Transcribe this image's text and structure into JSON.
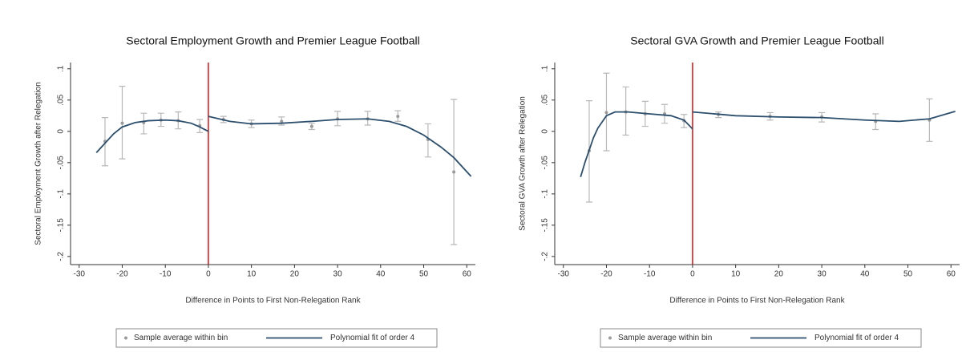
{
  "chart_data": [
    {
      "type": "scatter",
      "title": "Sectoral Employment Growth and Premier League Football",
      "xlabel": "Difference in Points to First Non-Relegation Rank",
      "ylabel": "Sectoral Employment Growth after Relegation",
      "xlim": [
        -32,
        62
      ],
      "ylim": [
        -0.213,
        0.11
      ],
      "xticks": [
        -30,
        -20,
        -10,
        0,
        10,
        20,
        30,
        40,
        50,
        60
      ],
      "yticks": [
        {
          "value": 0.1,
          "label": ".1"
        },
        {
          "value": 0.05,
          "label": ".05"
        },
        0,
        {
          "value": -0.05,
          "label": "-.05"
        },
        {
          "value": -0.1,
          "label": "-.1"
        },
        {
          "value": -0.15,
          "label": "-.15"
        },
        {
          "value": -0.2,
          "label": "-.2"
        }
      ],
      "vline": 0,
      "vline_color": "#e01010",
      "series": [
        {
          "name": "Sample average within bin",
          "color": "#9a9a9a",
          "x": [
            -24,
            -20,
            -15,
            -11,
            -7,
            -2,
            3.5,
            10,
            17,
            24,
            30,
            37,
            44,
            51,
            57
          ],
          "values": [
            -0.016,
            0.013,
            0.014,
            0.018,
            0.017,
            0.009,
            0.019,
            0.012,
            0.016,
            0.008,
            0.02,
            0.02,
            0.024,
            -0.013,
            -0.065
          ],
          "ci_high": [
            0.022,
            0.072,
            0.029,
            0.029,
            0.031,
            0.019,
            0.024,
            0.018,
            0.023,
            0.013,
            0.032,
            0.032,
            0.033,
            0.012,
            0.051
          ],
          "ci_low": [
            -0.055,
            -0.044,
            -0.004,
            0.008,
            0.004,
            -0.002,
            0.014,
            0.006,
            0.01,
            0.003,
            0.009,
            0.01,
            0.016,
            -0.041,
            -0.181
          ]
        },
        {
          "name": "Polynomial fit of order 4",
          "color": "#2c4f6e",
          "x": [
            -26,
            -24,
            -22,
            -20,
            -17,
            -14,
            -10,
            -7,
            -4,
            -2,
            0,
            0,
            0,
            5,
            10,
            17,
            24,
            30,
            37,
            42,
            46,
            50,
            54,
            57,
            61
          ],
          "values": [
            -0.034,
            -0.019,
            -0.004,
            0.007,
            0.014,
            0.017,
            0.018,
            0.017,
            0.013,
            0.007,
            0.0,
            null,
            0.024,
            0.016,
            0.012,
            0.013,
            0.016,
            0.019,
            0.02,
            0.016,
            0.008,
            -0.006,
            -0.025,
            -0.042,
            -0.072
          ]
        }
      ]
    },
    {
      "type": "scatter",
      "title": "Sectoral GVA Growth and Premier League Football",
      "xlabel": "Difference in Points to First Non-Relegation Rank",
      "ylabel": "Sectoral GVA Growth after Relegation",
      "xlim": [
        -32,
        62
      ],
      "ylim": [
        -0.213,
        0.11
      ],
      "xticks": [
        -30,
        -20,
        -10,
        0,
        10,
        20,
        30,
        40,
        50,
        60
      ],
      "yticks": [
        {
          "value": 0.1,
          "label": ".1"
        },
        {
          "value": 0.05,
          "label": ".05"
        },
        0,
        {
          "value": -0.05,
          "label": "-.05"
        },
        {
          "value": -0.1,
          "label": "-.1"
        },
        {
          "value": -0.15,
          "label": "-.15"
        },
        {
          "value": -0.2,
          "label": "-.2"
        }
      ],
      "vline": 0,
      "vline_color": "#e01010",
      "series": [
        {
          "name": "Sample average within bin",
          "color": "#9a9a9a",
          "x": [
            -24,
            -20,
            -15.5,
            -11,
            -6.5,
            -2,
            6,
            18,
            30,
            42.5,
            55
          ],
          "values": [
            -0.031,
            0.03,
            0.031,
            0.028,
            0.028,
            0.017,
            0.027,
            0.024,
            0.023,
            0.016,
            0.018
          ],
          "ci_high": [
            0.049,
            0.093,
            0.071,
            0.048,
            0.043,
            0.027,
            0.031,
            0.03,
            0.03,
            0.028,
            0.052
          ],
          "ci_low": [
            -0.113,
            -0.031,
            -0.006,
            0.008,
            0.013,
            0.006,
            0.022,
            0.018,
            0.015,
            0.003,
            -0.016
          ]
        },
        {
          "name": "Polynomial fit of order 4",
          "color": "#2c4f6e",
          "x": [
            -26,
            -25,
            -24,
            -23,
            -22,
            -20,
            -18,
            -15,
            -10,
            -5,
            -2,
            0,
            0,
            0,
            10,
            20,
            30,
            40,
            48,
            55,
            61
          ],
          "values": [
            -0.073,
            -0.05,
            -0.03,
            -0.01,
            0.005,
            0.025,
            0.031,
            0.031,
            0.028,
            0.025,
            0.018,
            0.004,
            null,
            0.031,
            0.025,
            0.023,
            0.022,
            0.018,
            0.016,
            0.02,
            0.032
          ]
        }
      ]
    }
  ]
}
